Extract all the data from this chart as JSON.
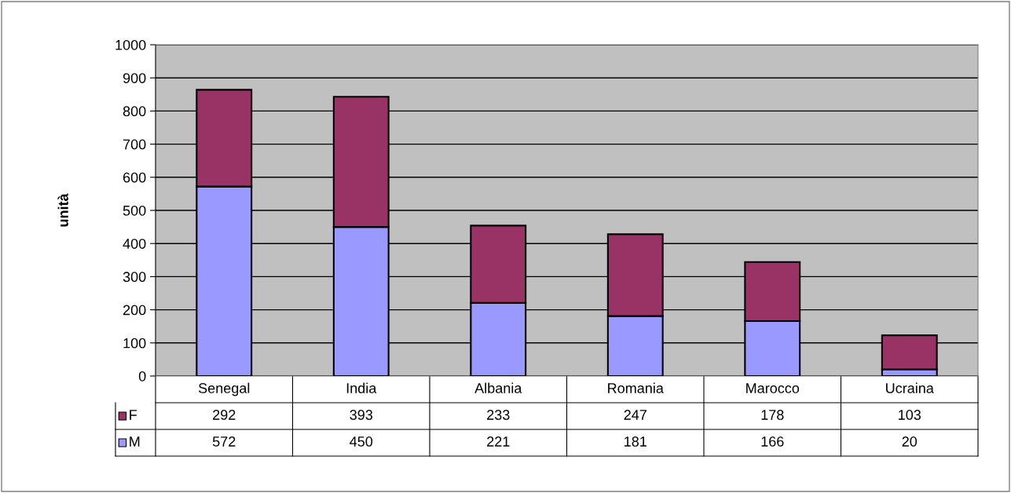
{
  "chart_data": {
    "type": "bar",
    "stacked": true,
    "ylabel": "unità",
    "categories": [
      "Senegal",
      "India",
      "Albania",
      "Romania",
      "Marocco",
      "Ucraina"
    ],
    "series": [
      {
        "name": "M",
        "color": "#9999ff",
        "values": [
          572,
          450,
          221,
          181,
          166,
          20
        ]
      },
      {
        "name": "F",
        "color": "#993366",
        "values": [
          292,
          393,
          233,
          247,
          178,
          103
        ]
      }
    ],
    "ylim": [
      0,
      1000
    ],
    "yticks": [
      0,
      100,
      200,
      300,
      400,
      500,
      600,
      700,
      800,
      900,
      1000
    ],
    "grid": "y",
    "legend": "bottom",
    "data_labels": true
  }
}
